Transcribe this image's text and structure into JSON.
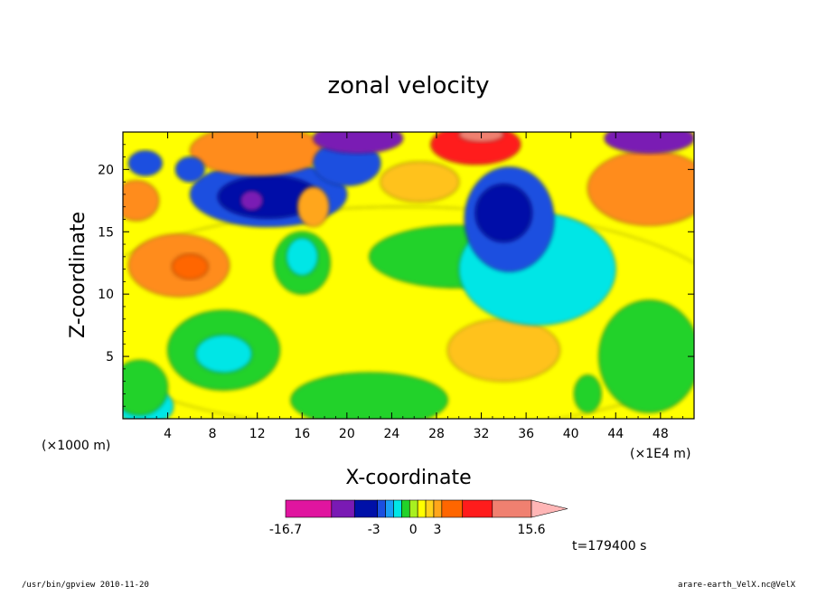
{
  "chart_data": {
    "type": "heatmap",
    "title": "zonal velocity",
    "xlabel": "X-coordinate",
    "ylabel": "Z-coordinate",
    "x_scale_note": "(×1E4 m)",
    "y_scale_note": "(×1000 m)",
    "xlim": [
      0,
      51
    ],
    "ylim": [
      0,
      23
    ],
    "x_ticks": [
      4,
      8,
      12,
      16,
      20,
      24,
      28,
      32,
      36,
      40,
      44,
      48
    ],
    "y_ticks": [
      5,
      10,
      15,
      20
    ],
    "colorbar": {
      "min_label": "-16.7",
      "max_label": "15.6",
      "tick_labels": [
        "-3",
        "0",
        "3"
      ],
      "colors": [
        "#e0159f",
        "#7a1ab4",
        "#0010a8",
        "#1a4fe0",
        "#1a9ef5",
        "#00e6e6",
        "#22d22a",
        "#a8f020",
        "#ffff00",
        "#ffd21a",
        "#ffa61a",
        "#ff6600",
        "#ff1c1c",
        "#f08070",
        "#ffb6b6"
      ]
    },
    "field_blobs": [
      {
        "x": 25,
        "y": 8,
        "rx": 30,
        "ry": 9,
        "color": "#ffff00"
      },
      {
        "x": 5,
        "y": 12.3,
        "rx": 4.5,
        "ry": 2.5,
        "color": "#ff8c1a"
      },
      {
        "x": 6,
        "y": 12.2,
        "rx": 1.6,
        "ry": 1.0,
        "color": "#ff6600"
      },
      {
        "x": 9,
        "y": 5.5,
        "rx": 5,
        "ry": 3.2,
        "color": "#22d22a"
      },
      {
        "x": 9,
        "y": 5.2,
        "rx": 2.5,
        "ry": 1.5,
        "color": "#00e6e6"
      },
      {
        "x": 2,
        "y": 1,
        "rx": 2.5,
        "ry": 1.5,
        "color": "#00e6e6"
      },
      {
        "x": 1.5,
        "y": 2.5,
        "rx": 2.5,
        "ry": 2.2,
        "color": "#22d22a"
      },
      {
        "x": 22,
        "y": 1.5,
        "rx": 7,
        "ry": 2.2,
        "color": "#22d22a"
      },
      {
        "x": 16,
        "y": 12.5,
        "rx": 2.5,
        "ry": 2.5,
        "color": "#22d22a"
      },
      {
        "x": 16,
        "y": 13,
        "rx": 1.4,
        "ry": 1.5,
        "color": "#00e6e6"
      },
      {
        "x": 34,
        "y": 5.5,
        "rx": 5,
        "ry": 2.5,
        "color": "#ffc21a"
      },
      {
        "x": 47,
        "y": 5,
        "rx": 4.5,
        "ry": 4.5,
        "color": "#22d22a"
      },
      {
        "x": 30,
        "y": 13,
        "rx": 8,
        "ry": 2.5,
        "color": "#22d22a"
      },
      {
        "x": 37,
        "y": 12,
        "rx": 7,
        "ry": 4.5,
        "color": "#00e6e6"
      },
      {
        "x": 34.5,
        "y": 16,
        "rx": 4,
        "ry": 4.2,
        "color": "#1a4fe0"
      },
      {
        "x": 34,
        "y": 16.5,
        "rx": 2.5,
        "ry": 2.3,
        "color": "#0010a8"
      },
      {
        "x": 13,
        "y": 18,
        "rx": 7,
        "ry": 2.6,
        "color": "#1a4fe0"
      },
      {
        "x": 13,
        "y": 17.8,
        "rx": 4.5,
        "ry": 1.7,
        "color": "#0010a8"
      },
      {
        "x": 11.5,
        "y": 17.5,
        "rx": 1.0,
        "ry": 0.8,
        "color": "#7a1ab4"
      },
      {
        "x": 17,
        "y": 17,
        "rx": 1.4,
        "ry": 1.6,
        "color": "#ffa61a"
      },
      {
        "x": 12,
        "y": 21.5,
        "rx": 6,
        "ry": 2.0,
        "color": "#ff8c1a"
      },
      {
        "x": 20,
        "y": 20.5,
        "rx": 3,
        "ry": 1.8,
        "color": "#1a4fe0"
      },
      {
        "x": 21,
        "y": 22.5,
        "rx": 4,
        "ry": 1.2,
        "color": "#7a1ab4"
      },
      {
        "x": 31.5,
        "y": 22,
        "rx": 4,
        "ry": 1.6,
        "color": "#ff1c1c"
      },
      {
        "x": 32,
        "y": 22.8,
        "rx": 2,
        "ry": 0.6,
        "color": "#f08070"
      },
      {
        "x": 26.5,
        "y": 19,
        "rx": 3.5,
        "ry": 1.6,
        "color": "#ffc21a"
      },
      {
        "x": 47,
        "y": 18.5,
        "rx": 5.5,
        "ry": 3.0,
        "color": "#ff8c1a"
      },
      {
        "x": 47,
        "y": 22.5,
        "rx": 4,
        "ry": 1.2,
        "color": "#7a1ab4"
      },
      {
        "x": 1.2,
        "y": 17.5,
        "rx": 2.0,
        "ry": 1.6,
        "color": "#ff8c1a"
      },
      {
        "x": 2,
        "y": 20.5,
        "rx": 1.5,
        "ry": 1.0,
        "color": "#1a4fe0"
      },
      {
        "x": 6,
        "y": 20,
        "rx": 1.3,
        "ry": 1.0,
        "color": "#1a4fe0"
      },
      {
        "x": 41.5,
        "y": 2,
        "rx": 1.2,
        "ry": 1.5,
        "color": "#22d22a"
      }
    ]
  },
  "info": {
    "time_label": "t=179400 s",
    "footer_left": "/usr/bin/gpview   2010-11-20",
    "footer_right": "arare-earth_VelX.nc@VelX"
  }
}
